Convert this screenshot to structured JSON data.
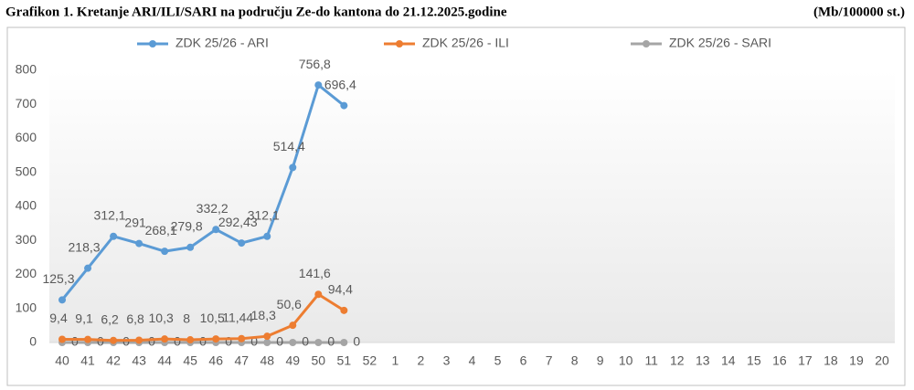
{
  "chart_data": {
    "type": "line",
    "title": "Grafikon 1. Kretanje ARI/ILI/SARI na području Ze-do kantona do 21.12.2025.godine",
    "subtitle": "(Mb/100000 st.)",
    "categories": [
      "40",
      "41",
      "42",
      "43",
      "44",
      "45",
      "46",
      "47",
      "48",
      "49",
      "50",
      "51",
      "52",
      "1",
      "2",
      "3",
      "4",
      "5",
      "6",
      "7",
      "8",
      "9",
      "10",
      "11",
      "12",
      "13",
      "14",
      "15",
      "16",
      "17",
      "18",
      "19",
      "20"
    ],
    "series": [
      {
        "name": "ZDK 25/26 - ARI",
        "color": "#5b9bd5",
        "values": [
          125.3,
          218.3,
          312.1,
          291,
          268.1,
          279.8,
          332.2,
          292.43,
          312.1,
          514.4,
          756.8,
          696.4,
          null,
          null,
          null,
          null,
          null,
          null,
          null,
          null,
          null,
          null,
          null,
          null,
          null,
          null,
          null,
          null,
          null,
          null,
          null,
          null,
          null
        ],
        "value_labels": [
          "125,3",
          "218,3",
          "312,1",
          "291",
          "268,1",
          "279,8",
          "332,2",
          "292,43",
          "312,1",
          "514,4",
          "756,8",
          "696,4",
          null,
          null,
          null,
          null,
          null,
          null,
          null,
          null,
          null,
          null,
          null,
          null,
          null,
          null,
          null,
          null,
          null,
          null,
          null,
          null,
          null
        ]
      },
      {
        "name": "ZDK 25/26 - ILI",
        "color": "#ed7d31",
        "values": [
          9.4,
          9.1,
          6.2,
          6.8,
          10.3,
          8,
          10.5,
          11.44,
          18.3,
          50.6,
          141.6,
          94.4,
          null,
          null,
          null,
          null,
          null,
          null,
          null,
          null,
          null,
          null,
          null,
          null,
          null,
          null,
          null,
          null,
          null,
          null,
          null,
          null,
          null
        ],
        "value_labels": [
          "9,4",
          "9,1",
          "6,2",
          "6,8",
          "10,3",
          "8",
          "10,5",
          "11,44",
          "18,3",
          "50,6",
          "141,6",
          "94,4",
          null,
          null,
          null,
          null,
          null,
          null,
          null,
          null,
          null,
          null,
          null,
          null,
          null,
          null,
          null,
          null,
          null,
          null,
          null,
          null,
          null
        ]
      },
      {
        "name": "ZDK 25/26 - SARI",
        "color": "#a5a5a5",
        "values": [
          0,
          0,
          0,
          0,
          0,
          0,
          0,
          0,
          0,
          0,
          0,
          0,
          null,
          null,
          null,
          null,
          null,
          null,
          null,
          null,
          null,
          null,
          null,
          null,
          null,
          null,
          null,
          null,
          null,
          null,
          null,
          null,
          null
        ],
        "value_labels": [
          "0",
          "0",
          "0",
          "0",
          "0",
          "0",
          "0",
          "0",
          "0",
          "0",
          "0",
          "0",
          null,
          null,
          null,
          null,
          null,
          null,
          null,
          null,
          null,
          null,
          null,
          null,
          null,
          null,
          null,
          null,
          null,
          null,
          null,
          null,
          null
        ]
      }
    ],
    "ylim": [
      0,
      800
    ],
    "yticks": [
      0,
      100,
      200,
      300,
      400,
      500,
      600,
      700,
      800
    ],
    "grid": false,
    "legend": "top"
  }
}
